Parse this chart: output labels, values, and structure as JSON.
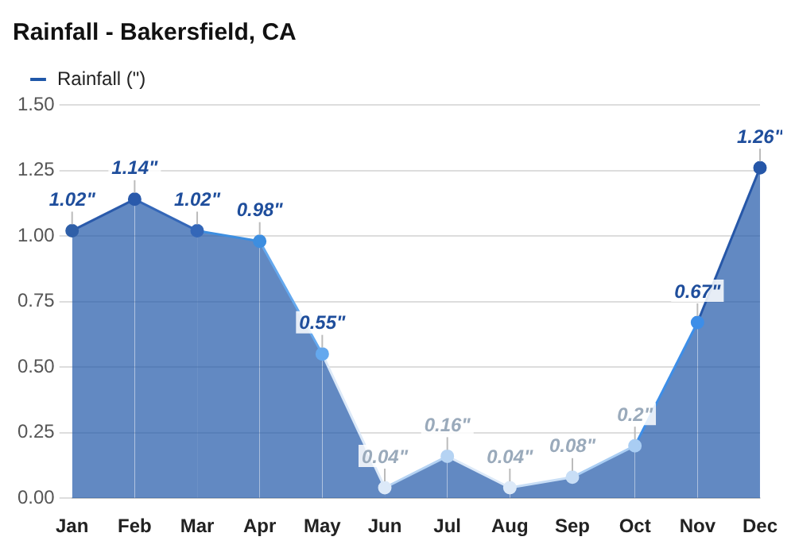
{
  "chart_data": {
    "type": "area",
    "title": "Rainfall - Bakersfield, CA",
    "categories": [
      "Jan",
      "Feb",
      "Mar",
      "Apr",
      "May",
      "Jun",
      "Jul",
      "Aug",
      "Sep",
      "Oct",
      "Nov",
      "Dec"
    ],
    "series": [
      {
        "name": "Rainfall (\")",
        "color": "#1f57a8",
        "colors": [
          "#2f5fa8",
          "#2a5aab",
          "#3467b8",
          "#3d8ee0",
          "#64a8ee",
          "#dce9f8",
          "#b5d3f3",
          "#dce9f8",
          "#c8def6",
          "#a9cdf3",
          "#3d8ee8",
          "#2657a8"
        ],
        "values": [
          1.02,
          1.14,
          1.02,
          0.98,
          0.55,
          0.04,
          0.16,
          0.04,
          0.08,
          0.2,
          0.67,
          1.26
        ],
        "value_labels": [
          "1.02\"",
          "1.14\"",
          "1.02\"",
          "0.98\"",
          "0.55\"",
          "0.04\"",
          "0.16\"",
          "0.04\"",
          "0.08\"",
          "0.2\"",
          "0.67\"",
          "1.26\""
        ]
      }
    ],
    "ylim": [
      0,
      1.5
    ],
    "yticks": [
      {
        "value": 0,
        "label": "0.00"
      },
      {
        "value": 0.25,
        "label": "0.25"
      },
      {
        "value": 0.5,
        "label": "0.50"
      },
      {
        "value": 0.75,
        "label": "0.75"
      },
      {
        "value": 1,
        "label": "1.00"
      },
      {
        "value": 1.25,
        "label": "1.25"
      },
      {
        "value": 1.5,
        "label": "1.50"
      }
    ],
    "grid": "y",
    "legend": "top left",
    "marker": "circle"
  }
}
